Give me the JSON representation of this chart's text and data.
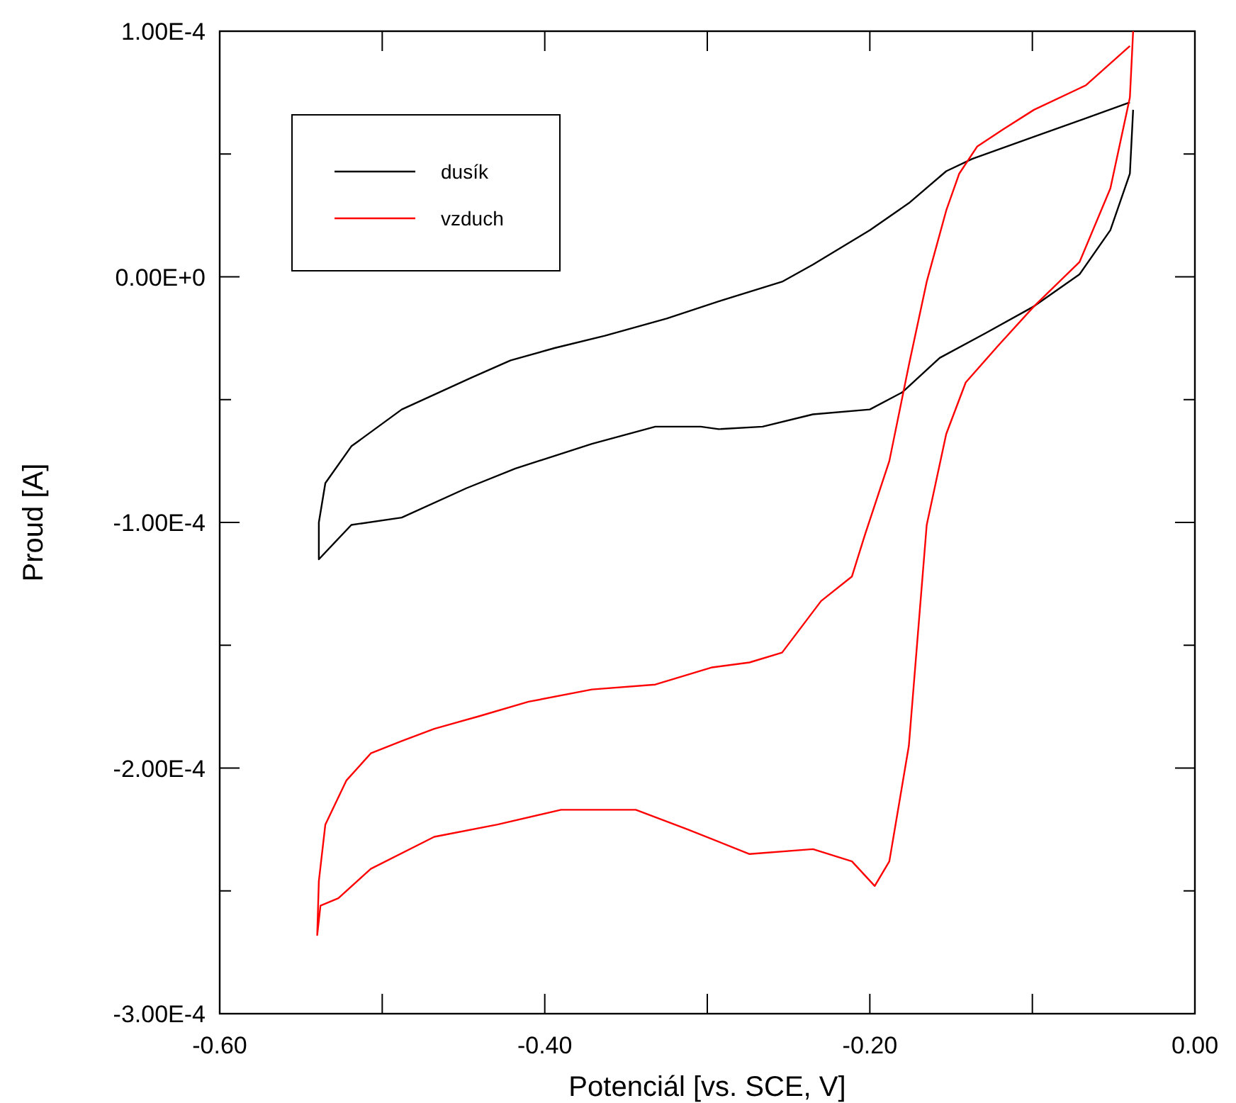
{
  "chart_data": {
    "type": "line",
    "xlabel": "Potenciál [vs. SCE, V]",
    "ylabel": "Proud [A]",
    "xlim": [
      -0.6,
      0
    ],
    "ylim": [
      -0.0003,
      0.0001
    ],
    "xticks": [
      {
        "value": -0.6,
        "label": "-0.60"
      },
      {
        "value": -0.5,
        "label": null
      },
      {
        "value": -0.4,
        "label": "-0.40"
      },
      {
        "value": -0.3,
        "label": null
      },
      {
        "value": -0.2,
        "label": "-0.20"
      },
      {
        "value": -0.1,
        "label": null
      },
      {
        "value": 0,
        "label": "0.00"
      }
    ],
    "yticks": [
      {
        "value": -0.0003,
        "label": "-3.00E-4"
      },
      {
        "value": -0.00025,
        "label": null
      },
      {
        "value": -0.0002,
        "label": "-2.00E-4"
      },
      {
        "value": -0.00015,
        "label": null
      },
      {
        "value": -0.0001,
        "label": "-1.00E-4"
      },
      {
        "value": -5e-05,
        "label": null
      },
      {
        "value": 0,
        "label": "0.00E+0"
      },
      {
        "value": 5e-05,
        "label": null
      },
      {
        "value": 0.0001,
        "label": "1.00E-4"
      }
    ],
    "grid": false,
    "legend": "top left",
    "marker": "none",
    "line_style": "solid",
    "series": [
      {
        "name": "dusík",
        "color": "#000000",
        "x": [
          -0.04,
          -0.099,
          -0.137,
          -0.153,
          -0.176,
          -0.2,
          -0.235,
          -0.254,
          -0.293,
          -0.325,
          -0.363,
          -0.394,
          -0.421,
          -0.445,
          -0.488,
          -0.519,
          -0.535,
          -0.539,
          -0.539,
          -0.519,
          -0.488,
          -0.448,
          -0.418,
          -0.371,
          -0.332,
          -0.304,
          -0.293,
          -0.266,
          -0.235,
          -0.2,
          -0.18,
          -0.157,
          -0.129,
          -0.099,
          -0.071,
          -0.052,
          -0.04,
          -0.038
        ],
        "values": [
          7.1e-05,
          5.7e-05,
          4.8e-05,
          4.3e-05,
          3e-05,
          1.9e-05,
          5e-06,
          -2e-06,
          -1e-05,
          -1.7e-05,
          -2.4e-05,
          -2.9e-05,
          -3.4e-05,
          -4.1e-05,
          -5.4e-05,
          -6.9e-05,
          -8.4e-05,
          -0.0001,
          -0.000115,
          -0.000101,
          -9.8e-05,
          -8.6e-05,
          -7.8e-05,
          -6.8e-05,
          -6.1e-05,
          -6.1e-05,
          -6.2e-05,
          -6.1e-05,
          -5.6e-05,
          -5.4e-05,
          -4.7e-05,
          -3.3e-05,
          -2.3e-05,
          -1.2e-05,
          1e-06,
          1.9e-05,
          4.2e-05,
          6.8e-05
        ]
      },
      {
        "name": "vzduch",
        "color": "#ff0000",
        "x": [
          -0.04,
          -0.067,
          -0.099,
          -0.118,
          -0.134,
          -0.145,
          -0.153,
          -0.165,
          -0.176,
          -0.188,
          -0.203,
          -0.211,
          -0.23,
          -0.254,
          -0.274,
          -0.297,
          -0.332,
          -0.371,
          -0.41,
          -0.441,
          -0.468,
          -0.488,
          -0.507,
          -0.522,
          -0.535,
          -0.539,
          -0.54,
          -0.538,
          -0.527,
          -0.507,
          -0.468,
          -0.429,
          -0.39,
          -0.344,
          -0.312,
          -0.274,
          -0.235,
          -0.211,
          -0.197,
          -0.188,
          -0.176,
          -0.165,
          -0.153,
          -0.141,
          -0.121,
          -0.099,
          -0.071,
          -0.052,
          -0.04,
          -0.038
        ],
        "values": [
          9.4e-05,
          7.8e-05,
          6.8e-05,
          6e-05,
          5.3e-05,
          4.2e-05,
          2.7e-05,
          -2e-06,
          -3.6e-05,
          -7.5e-05,
          -0.000105,
          -0.000122,
          -0.000132,
          -0.000153,
          -0.000157,
          -0.000159,
          -0.000166,
          -0.000168,
          -0.000173,
          -0.000179,
          -0.000184,
          -0.000189,
          -0.000194,
          -0.000205,
          -0.000223,
          -0.000246,
          -0.000268,
          -0.000256,
          -0.000253,
          -0.000241,
          -0.000228,
          -0.000223,
          -0.000217,
          -0.000217,
          -0.000225,
          -0.000235,
          -0.000233,
          -0.000238,
          -0.000248,
          -0.000238,
          -0.000191,
          -0.000101,
          -6.4e-05,
          -4.3e-05,
          -2.8e-05,
          -1.2e-05,
          6e-06,
          3.6e-05,
          7.3e-05,
          0.0001
        ]
      }
    ]
  }
}
